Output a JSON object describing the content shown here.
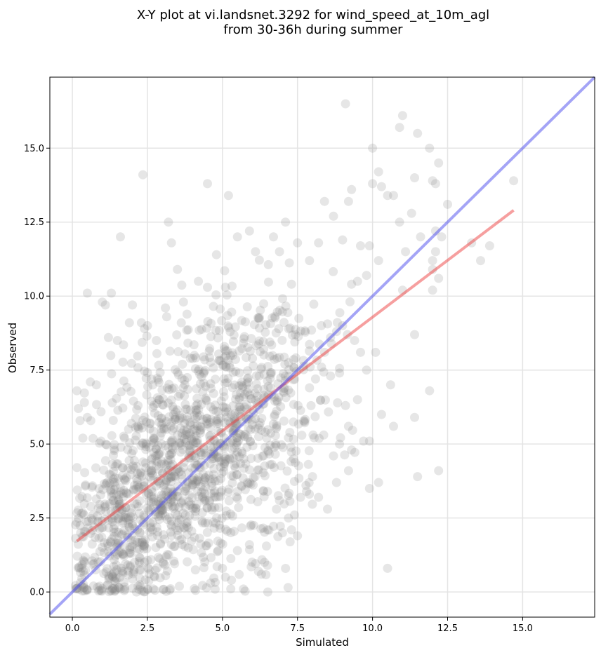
{
  "chart_data": {
    "type": "scatter",
    "title": "X-Y plot at vi.landsnet.3292 for wind_speed_at_10m_agl",
    "subtitle": "from 30-36h during summer",
    "xlabel": "Simulated",
    "ylabel": "Observed",
    "xlim": [
      -0.75,
      17.4
    ],
    "ylim": [
      -0.85,
      17.4
    ],
    "xticks": [
      0.0,
      2.5,
      5.0,
      7.5,
      10.0,
      12.5,
      15.0
    ],
    "yticks": [
      0.0,
      2.5,
      5.0,
      7.5,
      10.0,
      12.5,
      15.0
    ],
    "xtick_labels": [
      "0.0",
      "2.5",
      "5.0",
      "7.5",
      "10.0",
      "12.5",
      "15.0"
    ],
    "ytick_labels": [
      "0.0",
      "2.5",
      "5.0",
      "7.5",
      "10.0",
      "12.5",
      "15.0"
    ],
    "grid": true,
    "point_color": "#808080",
    "series": [
      {
        "points": [
          [
            0.15,
            6.8
          ],
          [
            0.2,
            6.2
          ],
          [
            0.5,
            10.1
          ],
          [
            0.6,
            7.1
          ],
          [
            0.35,
            5.2
          ],
          [
            0.5,
            5.9
          ],
          [
            0.8,
            7.0
          ],
          [
            1.0,
            9.8
          ],
          [
            1.1,
            9.7
          ],
          [
            1.3,
            10.1
          ],
          [
            1.2,
            8.6
          ],
          [
            1.5,
            8.5
          ],
          [
            1.6,
            12.0
          ],
          [
            1.9,
            9.1
          ],
          [
            2.0,
            9.7
          ],
          [
            2.3,
            9.1
          ],
          [
            2.4,
            8.9
          ],
          [
            2.35,
            14.1
          ],
          [
            2.5,
            9.0
          ],
          [
            2.8,
            8.5
          ],
          [
            3.1,
            9.6
          ],
          [
            3.3,
            11.8
          ],
          [
            3.2,
            12.5
          ],
          [
            3.5,
            10.9
          ],
          [
            3.7,
            9.8
          ],
          [
            4.2,
            10.5
          ],
          [
            4.5,
            10.3
          ],
          [
            4.5,
            13.8
          ],
          [
            4.8,
            11.4
          ],
          [
            5.1,
            10.3
          ],
          [
            5.2,
            13.4
          ],
          [
            5.5,
            12.0
          ],
          [
            5.9,
            12.2
          ],
          [
            6.1,
            11.5
          ],
          [
            6.7,
            12.0
          ],
          [
            6.9,
            11.5
          ],
          [
            7.1,
            12.5
          ],
          [
            7.3,
            10.4
          ],
          [
            7.5,
            11.8
          ],
          [
            7.9,
            11.2
          ],
          [
            8.2,
            11.8
          ],
          [
            8.4,
            13.2
          ],
          [
            8.7,
            12.7
          ],
          [
            9.0,
            11.9
          ],
          [
            9.1,
            16.5
          ],
          [
            9.2,
            13.2
          ],
          [
            9.3,
            13.6
          ],
          [
            9.6,
            11.7
          ],
          [
            9.9,
            11.7
          ],
          [
            10.0,
            15.0
          ],
          [
            10.0,
            13.8
          ],
          [
            10.2,
            14.2
          ],
          [
            10.3,
            13.7
          ],
          [
            10.5,
            13.4
          ],
          [
            10.7,
            13.4
          ],
          [
            10.9,
            15.7
          ],
          [
            11.0,
            16.1
          ],
          [
            10.9,
            12.5
          ],
          [
            11.3,
            12.8
          ],
          [
            11.4,
            14.0
          ],
          [
            11.5,
            15.5
          ],
          [
            11.9,
            15.0
          ],
          [
            12.0,
            13.9
          ],
          [
            12.1,
            13.8
          ],
          [
            12.2,
            14.5
          ],
          [
            12.5,
            13.1
          ],
          [
            12.1,
            12.2
          ],
          [
            12.3,
            12.0
          ],
          [
            12.1,
            11.5
          ],
          [
            12.0,
            10.9
          ],
          [
            11.6,
            12.0
          ],
          [
            11.1,
            11.5
          ],
          [
            11.0,
            10.2
          ],
          [
            10.2,
            11.2
          ],
          [
            9.8,
            10.7
          ],
          [
            9.5,
            10.5
          ],
          [
            9.3,
            10.4
          ],
          [
            12.0,
            10.2
          ],
          [
            12.2,
            10.6
          ],
          [
            12.0,
            11.2
          ],
          [
            13.3,
            11.8
          ],
          [
            13.6,
            11.2
          ],
          [
            13.9,
            11.7
          ],
          [
            14.7,
            13.9
          ],
          [
            11.4,
            5.9
          ],
          [
            11.5,
            3.9
          ],
          [
            11.4,
            8.7
          ],
          [
            12.2,
            4.1
          ],
          [
            11.9,
            6.8
          ],
          [
            10.7,
            5.6
          ],
          [
            10.6,
            7.0
          ],
          [
            10.3,
            6.0
          ],
          [
            10.1,
            8.1
          ],
          [
            10.5,
            0.8
          ],
          [
            10.2,
            3.7
          ],
          [
            9.9,
            3.5
          ],
          [
            9.9,
            5.1
          ],
          [
            9.7,
            5.1
          ],
          [
            9.2,
            4.1
          ],
          [
            9.3,
            4.8
          ],
          [
            9.5,
            6.5
          ],
          [
            9.8,
            7.5
          ],
          [
            9.6,
            8.1
          ],
          [
            9.4,
            8.5
          ],
          [
            9.0,
            9.0
          ],
          [
            8.8,
            8.8
          ],
          [
            8.6,
            8.6
          ],
          [
            8.4,
            8.1
          ],
          [
            8.3,
            7.6
          ],
          [
            8.1,
            7.2
          ],
          [
            7.9,
            6.9
          ],
          [
            8.6,
            7.3
          ],
          [
            8.9,
            7.4
          ],
          [
            9.1,
            6.3
          ],
          [
            9.2,
            5.6
          ],
          [
            8.9,
            5.0
          ],
          [
            8.7,
            4.6
          ],
          [
            8.8,
            3.7
          ],
          [
            8.5,
            2.8
          ],
          [
            8.2,
            3.2
          ],
          [
            8.0,
            3.9
          ],
          [
            7.8,
            3.4
          ],
          [
            7.6,
            3.2
          ],
          [
            7.4,
            2.6
          ],
          [
            7.3,
            2.1
          ],
          [
            7.5,
            1.9
          ],
          [
            7.2,
            2.5
          ],
          [
            7.0,
            2.0
          ],
          [
            6.8,
            2.8
          ],
          [
            6.5,
            2.1
          ],
          [
            6.5,
            3.4
          ],
          [
            6.4,
            1.0
          ],
          [
            6.3,
            0.6
          ],
          [
            6.2,
            0.7
          ],
          [
            6.5,
            0.9
          ],
          [
            5.9,
            1.6
          ],
          [
            5.7,
            0.1
          ],
          [
            5.5,
            1.4
          ],
          [
            5.1,
            0.5
          ],
          [
            5.0,
            0.8
          ],
          [
            5.3,
            0.4
          ]
        ]
      }
    ],
    "lines": [
      {
        "name": "regression",
        "color": "#ee4040",
        "points": [
          [
            0.15,
            1.72
          ],
          [
            14.7,
            12.9
          ]
        ]
      },
      {
        "name": "identity",
        "color": "#4a4aee",
        "points": [
          [
            -0.75,
            -0.75
          ],
          [
            17.4,
            17.4
          ]
        ]
      }
    ],
    "dense_cloud": [
      {
        "cx": 3.9,
        "cy": 4.6,
        "sx": 1.65,
        "sy": 2.25,
        "rho": 0.38,
        "n": 1050
      },
      {
        "cx": 1.5,
        "cy": 1.9,
        "sx": 0.8,
        "sy": 1.5,
        "rho": 0.25,
        "n": 260
      },
      {
        "cx": 6.6,
        "cy": 6.0,
        "sx": 1.3,
        "sy": 2.3,
        "rho": 0.3,
        "n": 220
      }
    ]
  }
}
